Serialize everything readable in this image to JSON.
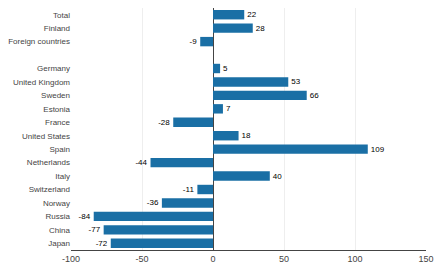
{
  "chart_data": {
    "type": "bar",
    "orientation": "horizontal",
    "categories": [
      "Total",
      "Finland",
      "Foreign countries",
      null,
      "Germany",
      "United Kingdom",
      "Sweden",
      "Estonia",
      "France",
      "United States",
      "Spain",
      "Netherlands",
      "Italy",
      "Switzerland",
      "Norway",
      "Russia",
      "China",
      "Japan"
    ],
    "values": [
      22,
      28,
      -9,
      null,
      5,
      53,
      66,
      7,
      -28,
      18,
      109,
      -44,
      40,
      -11,
      -36,
      -84,
      -77,
      -72
    ],
    "color": "#1a6fa5",
    "xlim": [
      -100,
      150
    ],
    "xticks": [
      -100,
      -50,
      0,
      50,
      100,
      150
    ],
    "grid": true,
    "data_labels": true
  }
}
